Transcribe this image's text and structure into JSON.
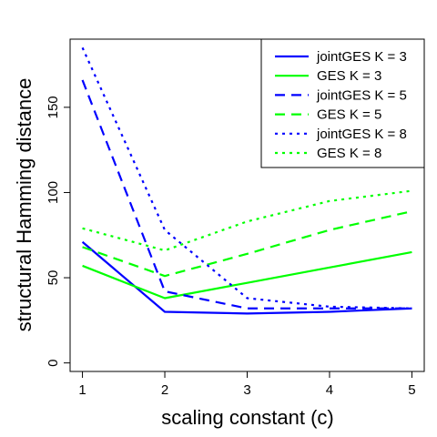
{
  "chart_data": {
    "type": "line",
    "title": "",
    "xlabel": "scaling constant (c)",
    "ylabel": "structural Hamming distance",
    "x": [
      1,
      2,
      3,
      4,
      5
    ],
    "xlim": [
      0.85,
      5.15
    ],
    "ylim": [
      -5,
      190
    ],
    "xticks": [
      "1",
      "2",
      "3",
      "4",
      "5"
    ],
    "yticks": [
      "0",
      "50",
      "100",
      "150"
    ],
    "grid": false,
    "legend_position": "top-right",
    "series": [
      {
        "name": "jointGES K = 3",
        "color": "#0000ff",
        "dash": "solid",
        "values": [
          71,
          30,
          29,
          30,
          32
        ]
      },
      {
        "name": "GES K = 3",
        "color": "#00ff00",
        "dash": "solid",
        "values": [
          57,
          38,
          47,
          56,
          65
        ]
      },
      {
        "name": "jointGES K = 5",
        "color": "#0000ff",
        "dash": "dashed",
        "values": [
          166,
          42,
          32,
          32,
          32
        ]
      },
      {
        "name": "GES K = 5",
        "color": "#00ff00",
        "dash": "dashed",
        "values": [
          68,
          51,
          64,
          78,
          89
        ]
      },
      {
        "name": "jointGES K = 8",
        "color": "#0000ff",
        "dash": "dotted",
        "values": [
          185,
          78,
          38,
          33,
          32
        ]
      },
      {
        "name": "GES K = 8",
        "color": "#00ff00",
        "dash": "dotted",
        "values": [
          79,
          66,
          83,
          95,
          101
        ]
      }
    ]
  }
}
